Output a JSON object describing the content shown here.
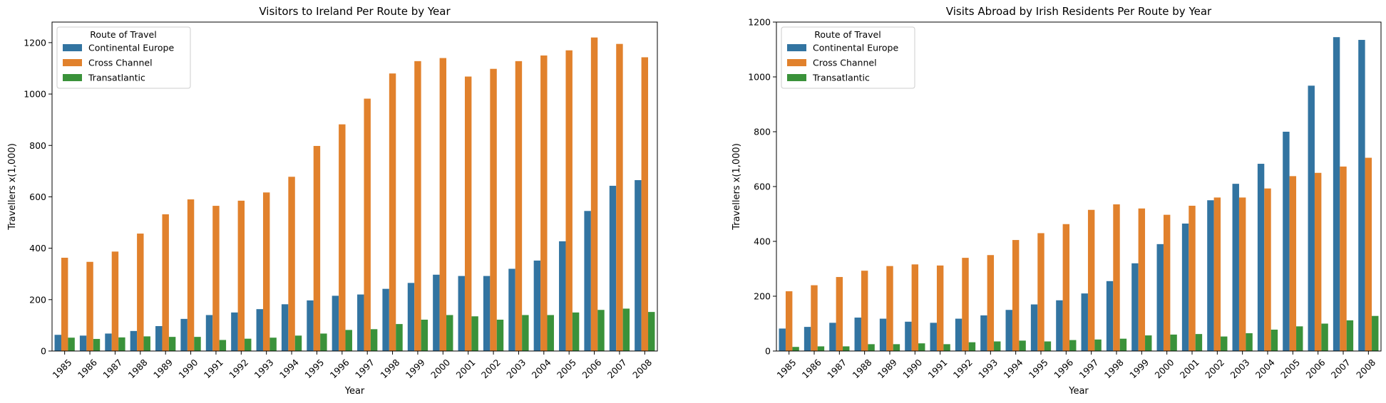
{
  "chart_data": [
    {
      "type": "bar",
      "title": "Visitors to Ireland Per Route by Year",
      "xlabel": "Year",
      "ylabel": "Travellers x(1,000)",
      "ylim": [
        0,
        1280
      ],
      "yticks": [
        0,
        200,
        400,
        600,
        800,
        1000,
        1200
      ],
      "grid": false,
      "legend": {
        "title": "Route of Travel",
        "position": "top-left"
      },
      "categories": [
        "1985",
        "1986",
        "1987",
        "1988",
        "1989",
        "1990",
        "1991",
        "1992",
        "1993",
        "1994",
        "1995",
        "1996",
        "1997",
        "1998",
        "1999",
        "2000",
        "2001",
        "2002",
        "2003",
        "2004",
        "2005",
        "2006",
        "2007",
        "2008"
      ],
      "series": [
        {
          "name": "Continental Europe",
          "color": "#3274a1",
          "values": [
            63,
            60,
            68,
            78,
            97,
            125,
            140,
            150,
            163,
            182,
            197,
            215,
            220,
            242,
            265,
            297,
            292,
            292,
            320,
            352,
            427,
            545,
            643,
            665
          ]
        },
        {
          "name": "Cross Channel",
          "color": "#e1812c",
          "values": [
            363,
            347,
            387,
            457,
            532,
            590,
            565,
            585,
            617,
            678,
            798,
            882,
            982,
            1080,
            1128,
            1140,
            1068,
            1098,
            1128,
            1150,
            1170,
            1220,
            1195,
            1143
          ]
        },
        {
          "name": "Transatlantic",
          "color": "#3a923a",
          "values": [
            52,
            47,
            53,
            57,
            55,
            55,
            43,
            48,
            52,
            60,
            68,
            82,
            85,
            105,
            122,
            140,
            135,
            122,
            140,
            140,
            150,
            160,
            165,
            152
          ]
        }
      ]
    },
    {
      "type": "bar",
      "title": "Visits Abroad by Irish Residents Per Route by Year",
      "xlabel": "Year",
      "ylabel": "Travellers x(1,000)",
      "ylim": [
        0,
        1200
      ],
      "yticks": [
        0,
        200,
        400,
        600,
        800,
        1000,
        1200
      ],
      "grid": false,
      "legend": {
        "title": "Route of Travel",
        "position": "top-left"
      },
      "categories": [
        "1985",
        "1986",
        "1987",
        "1988",
        "1989",
        "1990",
        "1991",
        "1992",
        "1993",
        "1994",
        "1995",
        "1996",
        "1997",
        "1998",
        "1999",
        "2000",
        "2001",
        "2002",
        "2003",
        "2004",
        "2005",
        "2006",
        "2007",
        "2008"
      ],
      "series": [
        {
          "name": "Continental Europe",
          "color": "#3274a1",
          "values": [
            82,
            88,
            103,
            122,
            118,
            107,
            103,
            118,
            130,
            150,
            170,
            185,
            210,
            255,
            320,
            390,
            465,
            550,
            610,
            683,
            800,
            968,
            1145,
            1135
          ]
        },
        {
          "name": "Cross Channel",
          "color": "#e1812c",
          "values": [
            218,
            240,
            270,
            293,
            310,
            316,
            312,
            340,
            350,
            405,
            430,
            463,
            515,
            535,
            520,
            497,
            530,
            560,
            560,
            593,
            638,
            650,
            673,
            705
          ]
        },
        {
          "name": "Transatlantic",
          "color": "#3a923a",
          "values": [
            15,
            17,
            17,
            25,
            25,
            28,
            25,
            32,
            35,
            38,
            35,
            40,
            42,
            45,
            57,
            60,
            62,
            53,
            65,
            78,
            90,
            100,
            112,
            128
          ]
        }
      ]
    }
  ]
}
